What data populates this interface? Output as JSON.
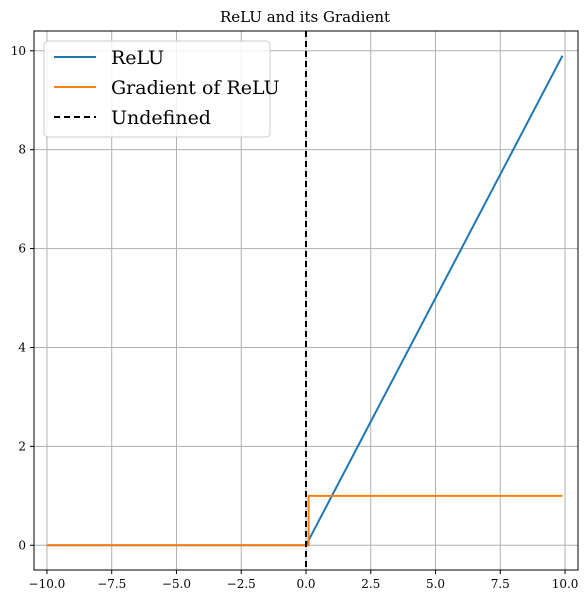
{
  "chart_data": {
    "type": "line",
    "title": "ReLU and its Gradient",
    "xlabel": "",
    "ylabel": "",
    "xlim": [
      -10.5,
      10.5
    ],
    "ylim": [
      -0.5,
      10.4
    ],
    "grid": true,
    "legend_position": "top-left",
    "x_ticks": [
      -10.0,
      -7.5,
      -5.0,
      -2.5,
      0.0,
      2.5,
      5.0,
      7.5,
      10.0
    ],
    "x_tick_labels": [
      "−10.0",
      "−7.5",
      "−5.0",
      "−2.5",
      "0.0",
      "2.5",
      "5.0",
      "7.5",
      "10.0"
    ],
    "y_ticks": [
      0,
      2,
      4,
      6,
      8,
      10
    ],
    "y_tick_labels": [
      "0",
      "2",
      "4",
      "6",
      "8",
      "10"
    ],
    "series": [
      {
        "name": "ReLU",
        "color": "#1f77b4",
        "style": "solid",
        "points": [
          [
            -10.0,
            0.0
          ],
          [
            0.0,
            0.0
          ],
          [
            9.9,
            9.9
          ]
        ]
      },
      {
        "name": "Gradient of ReLU",
        "color": "#ff7f0e",
        "style": "solid",
        "points": [
          [
            -10.0,
            0.0
          ],
          [
            0.0,
            0.0
          ],
          [
            0.1,
            0.0
          ],
          [
            0.1,
            1.0
          ],
          [
            9.9,
            1.0
          ]
        ]
      },
      {
        "name": "Undefined",
        "color": "#000000",
        "style": "dashed",
        "vline_x": 0.0
      }
    ]
  }
}
